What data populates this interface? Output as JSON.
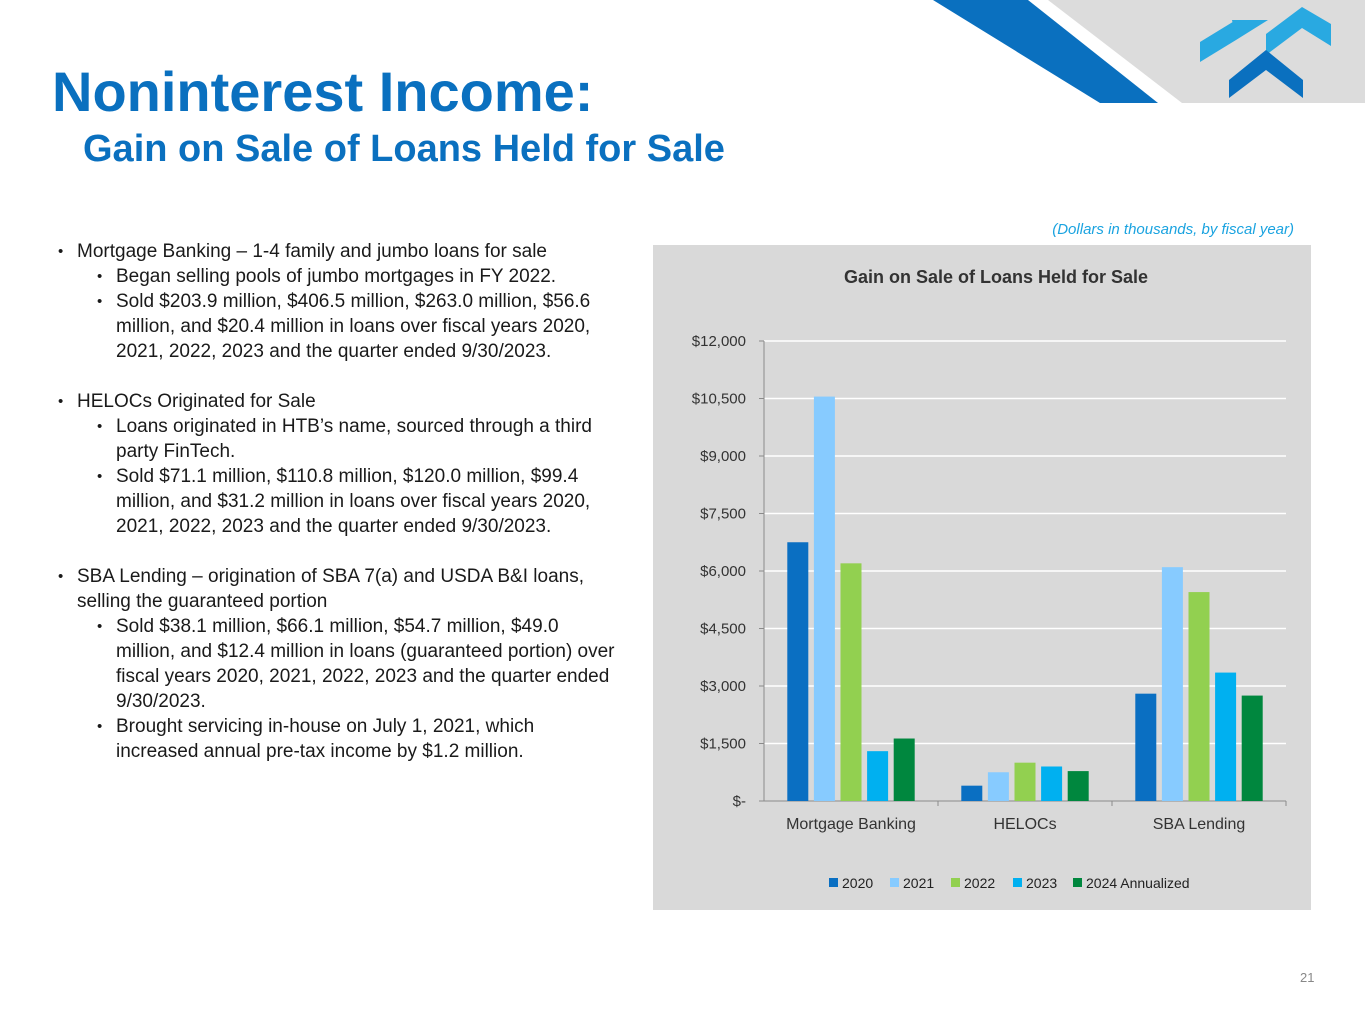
{
  "title": "Noninterest Income:",
  "subtitle": "Gain on Sale of Loans Held for Sale",
  "note": "(Dollars in thousands, by fiscal year)",
  "bullets": {
    "mortgage": {
      "heading": "Mortgage Banking – 1-4 family and jumbo loans for sale",
      "items": [
        "Began selling pools of jumbo mortgages in FY 2022.",
        "Sold $203.9 million, $406.5 million, $263.0 million, $56.6 million, and $20.4 million in loans over fiscal years 2020, 2021, 2022, 2023 and the quarter ended 9/30/2023."
      ]
    },
    "heloc": {
      "heading": "HELOCs Originated for Sale",
      "items": [
        "Loans originated in HTB’s name, sourced through a third party FinTech.",
        "Sold $71.1 million, $110.8 million, $120.0 million, $99.4 million, and $31.2 million in loans over fiscal years 2020, 2021, 2022, 2023 and the quarter ended 9/30/2023."
      ]
    },
    "sba": {
      "heading": "SBA Lending – origination of SBA 7(a) and USDA B&I loans, selling the guaranteed portion",
      "items": [
        "Sold $38.1 million, $66.1 million, $54.7 million, $49.0 million, and $12.4 million in loans (guaranteed portion) over fiscal years 2020, 2021, 2022, 2023 and the quarter ended 9/30/2023.",
        "Brought servicing in-house on July 1, 2021, which increased annual pre-tax income by $1.2 million."
      ]
    }
  },
  "chart_data": {
    "type": "bar",
    "title": "Gain on Sale of Loans Held for Sale",
    "categories": [
      "Mortgage Banking",
      "HELOCs",
      "SBA Lending"
    ],
    "series": [
      {
        "name": "2020",
        "values": [
          6750,
          400,
          2800
        ],
        "color": "#0a6fc2"
      },
      {
        "name": "2021",
        "values": [
          10550,
          750,
          6100
        ],
        "color": "#87cbff"
      },
      {
        "name": "2022",
        "values": [
          6200,
          1000,
          5450
        ],
        "color": "#92d050"
      },
      {
        "name": "2023",
        "values": [
          1300,
          900,
          3350
        ],
        "color": "#00b0f0"
      },
      {
        "name": "2024 Annualized",
        "values": [
          1630,
          780,
          2750
        ],
        "color": "#00873e"
      }
    ],
    "yticks": [
      "$-",
      "$1,500",
      "$3,000",
      "$4,500",
      "$6,000",
      "$7,500",
      "$9,000",
      "$10,500",
      "$12,000"
    ],
    "ylim": [
      0,
      12000
    ],
    "grid": true,
    "legend": "bottom"
  },
  "colors": {
    "title": "#0a70bf",
    "deco_dark": "#0a70bf",
    "deco_light": "#dcdcdc",
    "logo_light": "#29a9e1",
    "logo_dark": "#0a70bf"
  },
  "icons": {
    "logo": "company-logo-icon"
  },
  "page_number": "21"
}
